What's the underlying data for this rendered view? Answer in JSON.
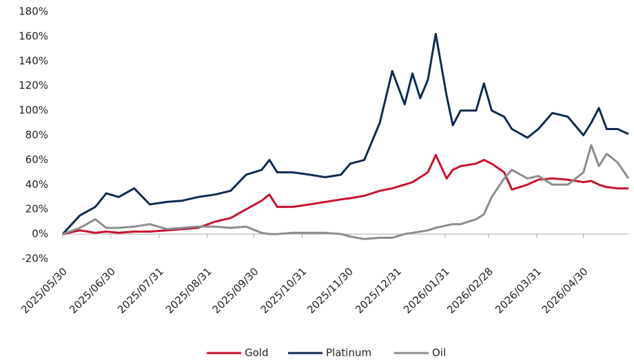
{
  "chart_data": {
    "type": "line",
    "x": [
      "2025/05/30",
      "2025/06/10",
      "2025/06/20",
      "2025/06/27",
      "2025/07/05",
      "2025/07/15",
      "2025/07/25",
      "2025/08/05",
      "2025/08/15",
      "2025/08/25",
      "2025/09/05",
      "2025/09/15",
      "2025/09/25",
      "2025/10/05",
      "2025/10/10",
      "2025/10/15",
      "2025/10/25",
      "2025/11/05",
      "2025/11/15",
      "2025/11/25",
      "2025/12/01",
      "2025/12/10",
      "2025/12/20",
      "2025/12/28",
      "2026/01/05",
      "2026/01/10",
      "2026/01/15",
      "2026/01/20",
      "2026/01/25",
      "2026/02/01",
      "2026/02/05",
      "2026/02/10",
      "2026/02/20",
      "2026/02/25",
      "2026/03/02",
      "2026/03/10",
      "2026/03/15",
      "2026/03/25",
      "2026/04/01",
      "2026/04/10",
      "2026/04/20",
      "2026/04/30",
      "2026/05/05",
      "2026/05/10",
      "2026/05/15",
      "2026/05/22",
      "2026/05/29"
    ],
    "series": [
      {
        "name": "Gold",
        "color": "#c8102e",
        "values": [
          0,
          3,
          1,
          2,
          1,
          2,
          2,
          3,
          4,
          5,
          10,
          13,
          20,
          27,
          32,
          22,
          22,
          24,
          26,
          28,
          29,
          31,
          35,
          37,
          40,
          42,
          46,
          50,
          64,
          45,
          52,
          55,
          57,
          60,
          57,
          50,
          36,
          40,
          44,
          45,
          44,
          42,
          43,
          40,
          38,
          37,
          37
        ]
      },
      {
        "name": "Platinum",
        "color": "#0c2a52",
        "values": [
          0,
          15,
          22,
          33,
          30,
          37,
          24,
          26,
          27,
          30,
          32,
          35,
          48,
          52,
          60,
          50,
          50,
          48,
          46,
          48,
          57,
          60,
          90,
          132,
          105,
          130,
          110,
          125,
          162,
          112,
          88,
          100,
          100,
          122,
          100,
          95,
          85,
          78,
          85,
          98,
          95,
          80,
          90,
          102,
          85,
          85,
          81
        ]
      },
      {
        "name": "Oil",
        "color": "#8c8c8c",
        "values": [
          0,
          5,
          12,
          5,
          5,
          6,
          8,
          4,
          5,
          6,
          6,
          5,
          6,
          1,
          0,
          0,
          1,
          1,
          1,
          0,
          -2,
          -4,
          -3,
          -3,
          0,
          1,
          2,
          3,
          5,
          7,
          8,
          8,
          12,
          16,
          30,
          45,
          52,
          45,
          47,
          40,
          40,
          50,
          72,
          55,
          65,
          58,
          45
        ]
      }
    ],
    "xlim": [
      "2025/05/30",
      "2026/05/29"
    ],
    "xticks": [
      "2025/05/30",
      "2025/06/30",
      "2025/07/31",
      "2025/08/31",
      "2025/09/30",
      "2025/10/31",
      "2025/11/30",
      "2025/12/31",
      "2026/01/31",
      "2026/02/28",
      "2026/03/31",
      "2026/04/30"
    ],
    "ylim": [
      -20,
      180
    ],
    "yticks": [
      {
        "value": -20,
        "label": "-20%"
      },
      {
        "value": 0,
        "label": "0%"
      },
      {
        "value": 20,
        "label": "20%"
      },
      {
        "value": 40,
        "label": "40%"
      },
      {
        "value": 60,
        "label": "60%"
      },
      {
        "value": 80,
        "label": "80%"
      },
      {
        "value": 100,
        "label": "100%"
      },
      {
        "value": 120,
        "label": "120%"
      },
      {
        "value": 140,
        "label": "140%"
      },
      {
        "value": 160,
        "label": "160%"
      },
      {
        "value": 180,
        "label": "180%"
      }
    ],
    "legend": "bottom"
  }
}
